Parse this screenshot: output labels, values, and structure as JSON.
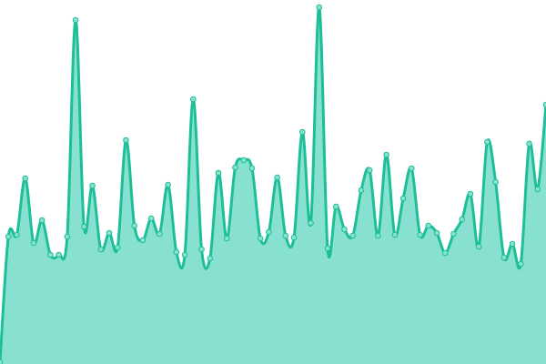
{
  "chart_data": {
    "type": "area",
    "values": [
      2,
      140,
      142,
      204,
      133,
      158,
      120,
      120,
      140,
      378,
      151,
      196,
      126,
      144,
      128,
      246,
      152,
      136,
      160,
      143,
      197,
      123,
      120,
      291,
      126,
      116,
      210,
      138,
      216,
      224,
      215,
      138,
      145,
      205,
      141,
      139,
      255,
      155,
      392,
      127,
      173,
      148,
      141,
      191,
      213,
      141,
      230,
      142,
      182,
      215,
      142,
      152,
      144,
      122,
      143,
      159,
      187,
      129,
      244,
      200,
      117,
      132,
      110,
      242,
      192,
      285
    ],
    "ylim": [
      0,
      400
    ],
    "color": "#1dbf98",
    "fill": "#88e1d0"
  }
}
